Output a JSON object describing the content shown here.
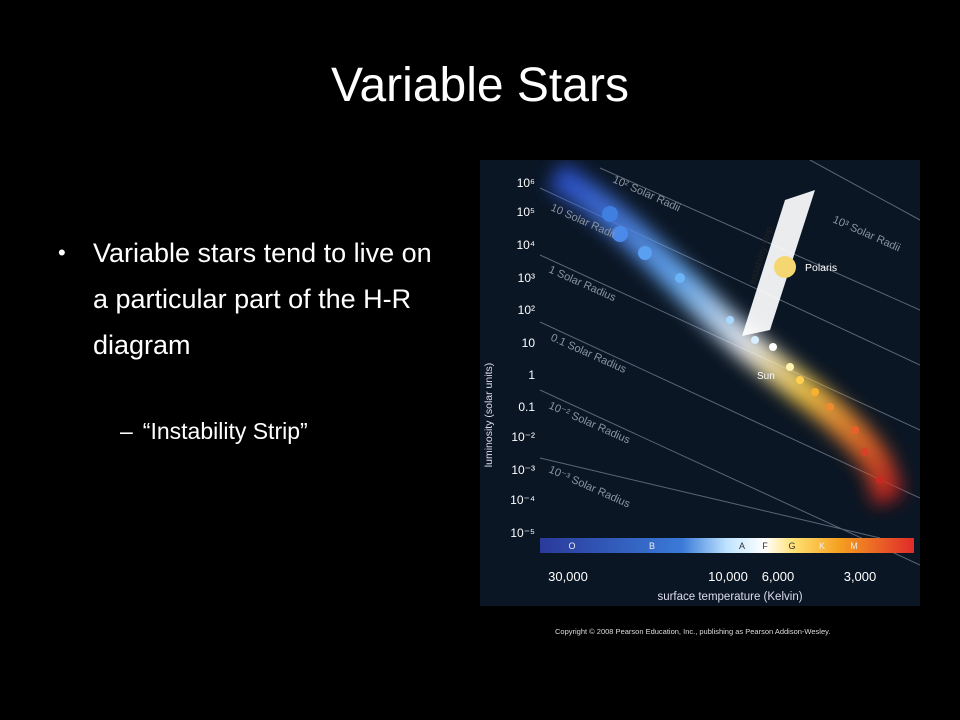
{
  "slide": {
    "title": "Variable Stars",
    "bullets": [
      {
        "text": "Variable stars tend to live on a particular part of the H-R diagram",
        "sub": [
          {
            "marker": "–",
            "text": "“Instability Strip”"
          }
        ]
      }
    ]
  },
  "diagram": {
    "y_axis_label": "luminosity (solar units)",
    "y_labels": [
      "10⁶",
      "10⁵",
      "10⁴",
      "10³",
      "10²",
      "10",
      "1",
      "0.1",
      "10⁻²",
      "10⁻³",
      "10⁻⁴",
      "10⁻⁵"
    ],
    "x_axis_label": "surface temperature (Kelvin)",
    "x_labels": [
      "30,000",
      "10,000",
      "6,000",
      "3,000"
    ],
    "spectral_classes": [
      "O",
      "B",
      "A",
      "F",
      "G",
      "K",
      "M"
    ],
    "radius_labels": [
      "10² Solar Radii",
      "10 Solar Radii",
      "10³ Solar Radii",
      "1 Solar Radius",
      "0.1 Solar Radius",
      "10⁻² Solar Radius",
      "10⁻³ Solar Radius"
    ],
    "strip_label": "instability strip",
    "polaris": "Polaris",
    "sun": "Sun",
    "copyright": "Copyright © 2008 Pearson Education, Inc., publishing as Pearson Addison-Wesley."
  }
}
